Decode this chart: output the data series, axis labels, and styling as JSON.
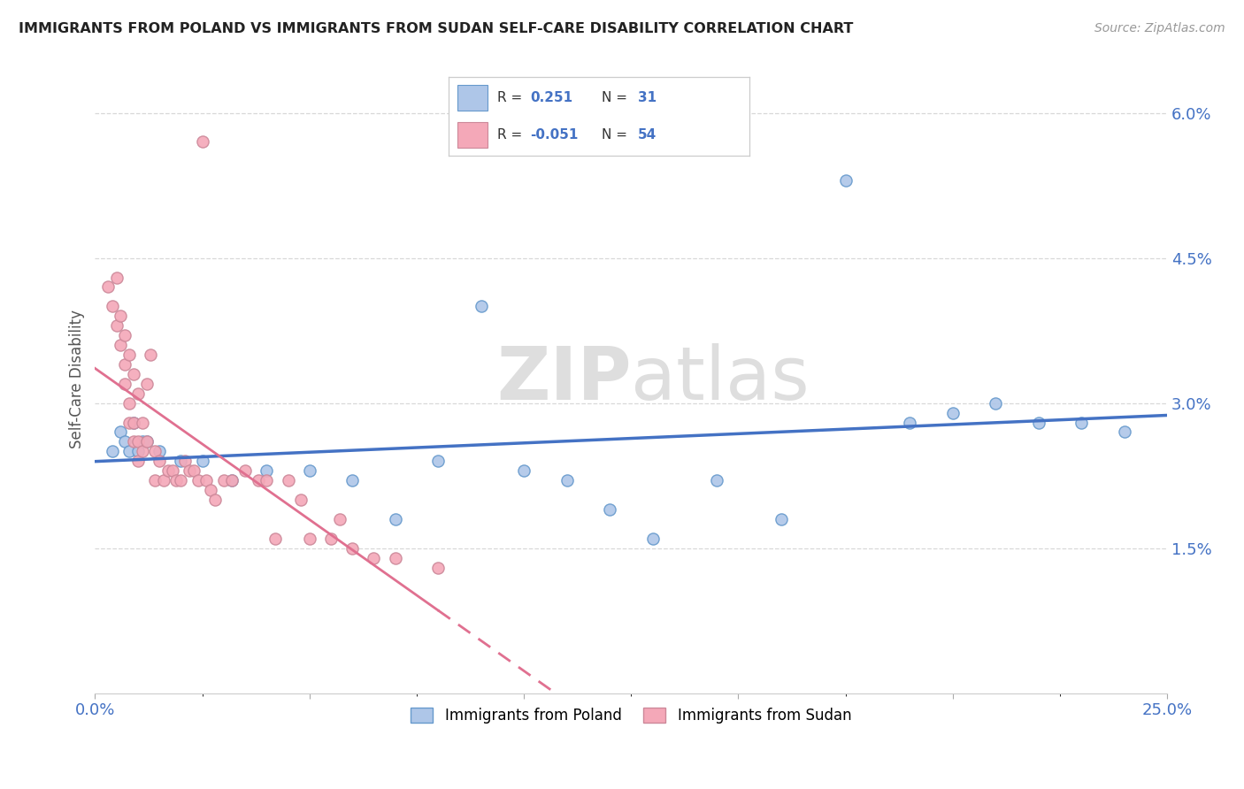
{
  "title": "IMMIGRANTS FROM POLAND VS IMMIGRANTS FROM SUDAN SELF-CARE DISABILITY CORRELATION CHART",
  "source": "Source: ZipAtlas.com",
  "ylabel": "Self-Care Disability",
  "yticks": [
    "1.5%",
    "3.0%",
    "4.5%",
    "6.0%"
  ],
  "ytick_vals": [
    0.015,
    0.03,
    0.045,
    0.06
  ],
  "xlim": [
    0.0,
    0.25
  ],
  "ylim": [
    0.0,
    0.065
  ],
  "legend_R_poland": "0.251",
  "legend_N_poland": "31",
  "legend_R_sudan": "-0.051",
  "legend_N_sudan": "54",
  "color_poland_fill": "#aec6e8",
  "color_poland_edge": "#6699cc",
  "color_sudan_fill": "#f4a8b8",
  "color_sudan_edge": "#cc8899",
  "color_poland_line": "#4472c4",
  "color_sudan_line": "#e07090",
  "poland_x": [
    0.004,
    0.006,
    0.007,
    0.008,
    0.009,
    0.01,
    0.011,
    0.012,
    0.015,
    0.02,
    0.025,
    0.032,
    0.04,
    0.05,
    0.06,
    0.07,
    0.08,
    0.09,
    0.1,
    0.11,
    0.12,
    0.13,
    0.145,
    0.16,
    0.175,
    0.19,
    0.2,
    0.21,
    0.22,
    0.23,
    0.24
  ],
  "poland_y": [
    0.025,
    0.027,
    0.026,
    0.025,
    0.028,
    0.025,
    0.026,
    0.026,
    0.025,
    0.024,
    0.024,
    0.022,
    0.023,
    0.023,
    0.022,
    0.018,
    0.024,
    0.04,
    0.023,
    0.022,
    0.019,
    0.016,
    0.022,
    0.018,
    0.053,
    0.028,
    0.029,
    0.03,
    0.028,
    0.028,
    0.027
  ],
  "sudan_x": [
    0.003,
    0.004,
    0.005,
    0.005,
    0.006,
    0.006,
    0.007,
    0.007,
    0.007,
    0.008,
    0.008,
    0.008,
    0.009,
    0.009,
    0.009,
    0.01,
    0.01,
    0.01,
    0.011,
    0.011,
    0.012,
    0.012,
    0.013,
    0.014,
    0.014,
    0.015,
    0.016,
    0.017,
    0.018,
    0.019,
    0.02,
    0.021,
    0.022,
    0.023,
    0.024,
    0.025,
    0.026,
    0.027,
    0.028,
    0.03,
    0.032,
    0.035,
    0.038,
    0.04,
    0.042,
    0.045,
    0.048,
    0.05,
    0.055,
    0.057,
    0.06,
    0.065,
    0.07,
    0.08
  ],
  "sudan_y": [
    0.042,
    0.04,
    0.038,
    0.043,
    0.036,
    0.039,
    0.034,
    0.032,
    0.037,
    0.03,
    0.035,
    0.028,
    0.033,
    0.028,
    0.026,
    0.031,
    0.026,
    0.024,
    0.028,
    0.025,
    0.032,
    0.026,
    0.035,
    0.025,
    0.022,
    0.024,
    0.022,
    0.023,
    0.023,
    0.022,
    0.022,
    0.024,
    0.023,
    0.023,
    0.022,
    0.057,
    0.022,
    0.021,
    0.02,
    0.022,
    0.022,
    0.023,
    0.022,
    0.022,
    0.016,
    0.022,
    0.02,
    0.016,
    0.016,
    0.018,
    0.015,
    0.014,
    0.014,
    0.013
  ]
}
